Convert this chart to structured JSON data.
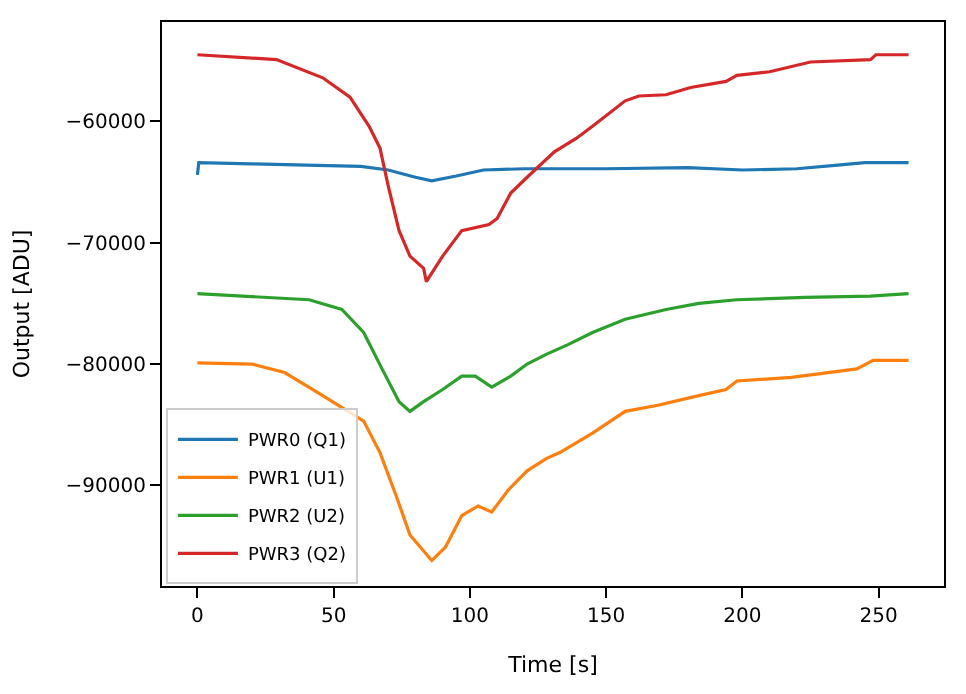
{
  "chart_data": {
    "type": "line",
    "xlabel": "Time [s]",
    "ylabel": "Output [ADU]",
    "xlim": [
      -13,
      274
    ],
    "xticks": [
      0,
      50,
      100,
      150,
      200,
      250
    ],
    "ylim": [
      -98300,
      -51800
    ],
    "yticks": [
      -90000,
      -80000,
      -70000,
      -60000
    ],
    "legend": "bottom left",
    "marker": "none",
    "line_style": "solid",
    "series": [
      {
        "name": "PWR0 (Q1)",
        "color": "#1f77b4",
        "x": [
          0,
          0.5,
          20,
          40,
          60,
          70,
          80,
          86,
          95,
          105,
          120,
          150,
          180,
          200,
          220,
          235,
          245,
          261
        ],
        "values": [
          -64400,
          -63400,
          -63500,
          -63600,
          -63700,
          -64000,
          -64600,
          -64900,
          -64500,
          -64000,
          -63900,
          -63900,
          -63800,
          -64000,
          -63900,
          -63600,
          -63400,
          -63400
        ]
      },
      {
        "name": "PWR1 (U1)",
        "color": "#ff7f0e",
        "x": [
          0,
          20,
          32,
          46,
          61,
          67,
          73,
          78,
          86,
          91,
          97,
          103,
          108,
          114,
          121,
          128,
          133,
          145,
          157,
          169,
          184,
          194,
          198,
          218,
          242,
          248,
          261
        ],
        "values": [
          -79900,
          -80000,
          -80700,
          -82600,
          -84700,
          -87300,
          -90900,
          -94100,
          -96200,
          -95100,
          -92500,
          -91700,
          -92200,
          -90400,
          -88800,
          -87800,
          -87300,
          -85700,
          -83900,
          -83400,
          -82600,
          -82100,
          -81400,
          -81100,
          -80400,
          -79700,
          -79700
        ]
      },
      {
        "name": "PWR2 (U2)",
        "color": "#2ca02c",
        "x": [
          0,
          41,
          53,
          61,
          68,
          74,
          78,
          83,
          90,
          97,
          102,
          108,
          115,
          121,
          128,
          136,
          145,
          157,
          172,
          184,
          198,
          223,
          247,
          261
        ],
        "values": [
          -74200,
          -74700,
          -75500,
          -77400,
          -80500,
          -83100,
          -83900,
          -83100,
          -82100,
          -81000,
          -81000,
          -81900,
          -81000,
          -80000,
          -79200,
          -78400,
          -77400,
          -76300,
          -75500,
          -75000,
          -74700,
          -74500,
          -74400,
          -74200
        ]
      },
      {
        "name": "PWR3 (Q2)",
        "color": "#d62728",
        "x": [
          0,
          29,
          46,
          56,
          63,
          67,
          70,
          74,
          78,
          83,
          84,
          90,
          97,
          107,
          110,
          115,
          121,
          131,
          139,
          145,
          157,
          162,
          172,
          181,
          194,
          198,
          210,
          225,
          247,
          249,
          261
        ],
        "values": [
          -54500,
          -54900,
          -56400,
          -58000,
          -60400,
          -62200,
          -65300,
          -69000,
          -71100,
          -72100,
          -73200,
          -71100,
          -69000,
          -68500,
          -68000,
          -65900,
          -64600,
          -62500,
          -61400,
          -60400,
          -58300,
          -57900,
          -57800,
          -57200,
          -56700,
          -56200,
          -55900,
          -55100,
          -54900,
          -54500,
          -54500
        ]
      }
    ]
  }
}
